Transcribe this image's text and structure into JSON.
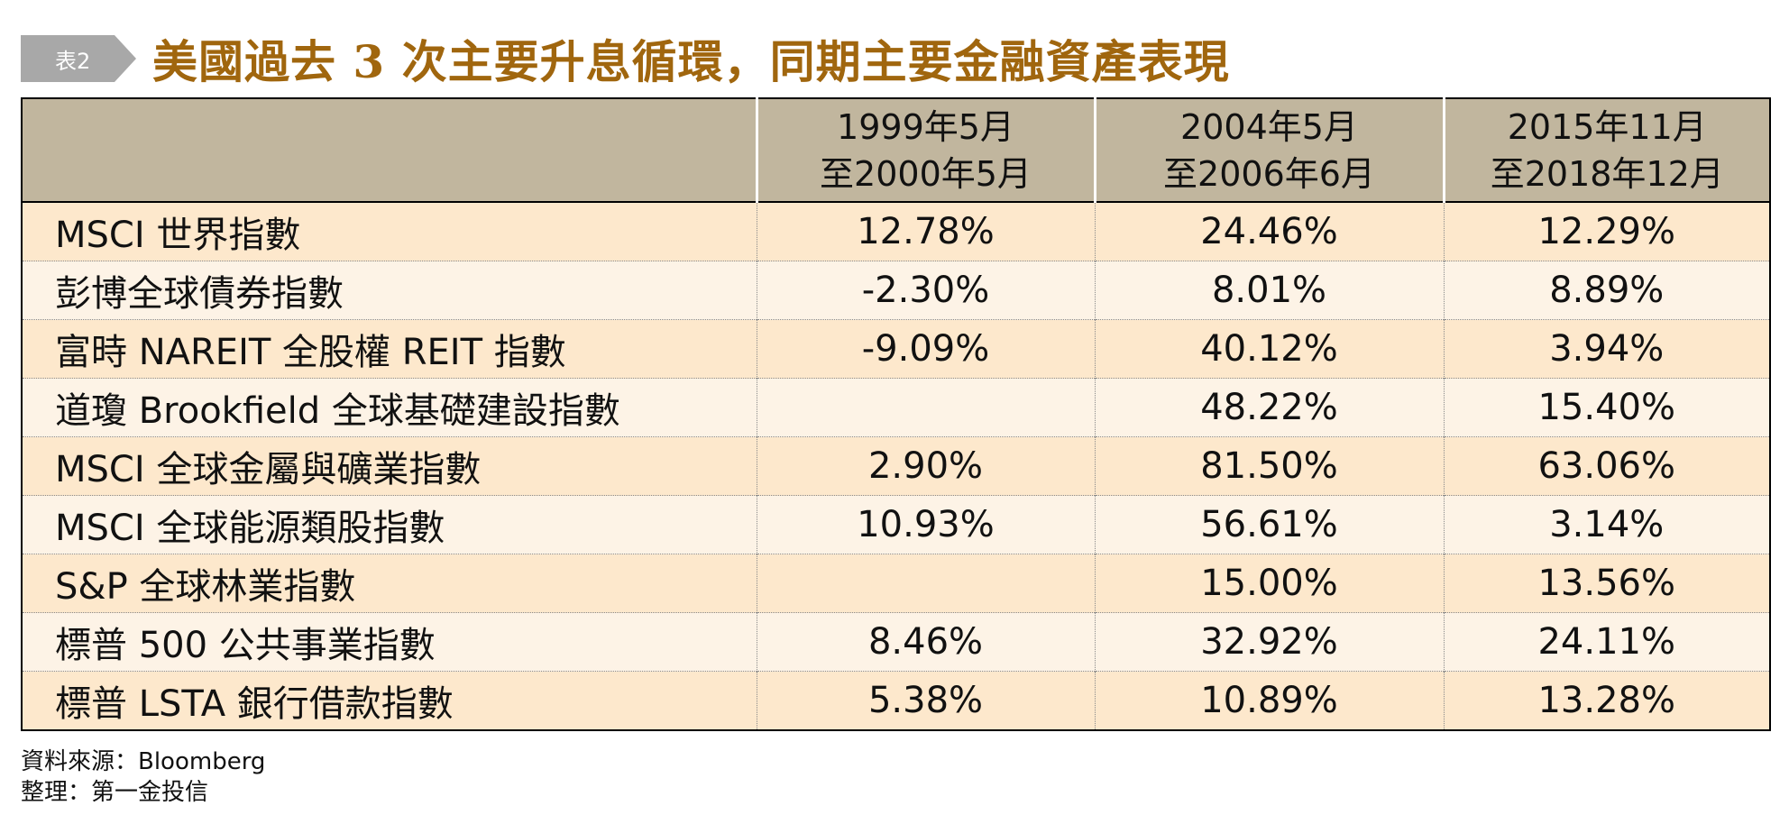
{
  "tag": "表2",
  "title": "美國過去 3 次主要升息循環，同期主要金融資產表現",
  "columns": [
    {
      "line1": "1999年5月",
      "line2": "至2000年5月"
    },
    {
      "line1": "2004年5月",
      "line2": "至2006年6月"
    },
    {
      "line1": "2015年11月",
      "line2": "至2018年12月"
    }
  ],
  "rows": [
    {
      "label": "MSCI 世界指數",
      "values": [
        "12.78%",
        "24.46%",
        "12.29%"
      ]
    },
    {
      "label": "彭博全球債券指數",
      "values": [
        "-2.30%",
        "8.01%",
        "8.89%"
      ]
    },
    {
      "label": "富時 NAREIT 全股權 REIT 指數",
      "values": [
        "-9.09%",
        "40.12%",
        "3.94%"
      ]
    },
    {
      "label": "道瓊 Brookfield 全球基礎建設指數",
      "values": [
        "",
        "48.22%",
        "15.40%"
      ]
    },
    {
      "label": "MSCI 全球金屬與礦業指數",
      "values": [
        "2.90%",
        "81.50%",
        "63.06%"
      ]
    },
    {
      "label": "MSCI 全球能源類股指數",
      "values": [
        "10.93%",
        "56.61%",
        "3.14%"
      ]
    },
    {
      "label": "S&P 全球林業指數",
      "values": [
        "",
        "15.00%",
        "13.56%"
      ]
    },
    {
      "label": "標普 500 公共事業指數",
      "values": [
        "8.46%",
        "32.92%",
        "24.11%"
      ]
    },
    {
      "label": "標普 LSTA 銀行借款指數",
      "values": [
        "5.38%",
        "10.89%",
        "13.28%"
      ]
    }
  ],
  "footer": {
    "source": "資料來源：Bloomberg",
    "compiled": "整理：第一金投信"
  },
  "colors": {
    "title": "#a0660e",
    "header_bg": "#c1b69e",
    "row_odd": "#fde8cc",
    "row_even": "#fdf3e6",
    "tag_bg": "#a8a8a8"
  }
}
